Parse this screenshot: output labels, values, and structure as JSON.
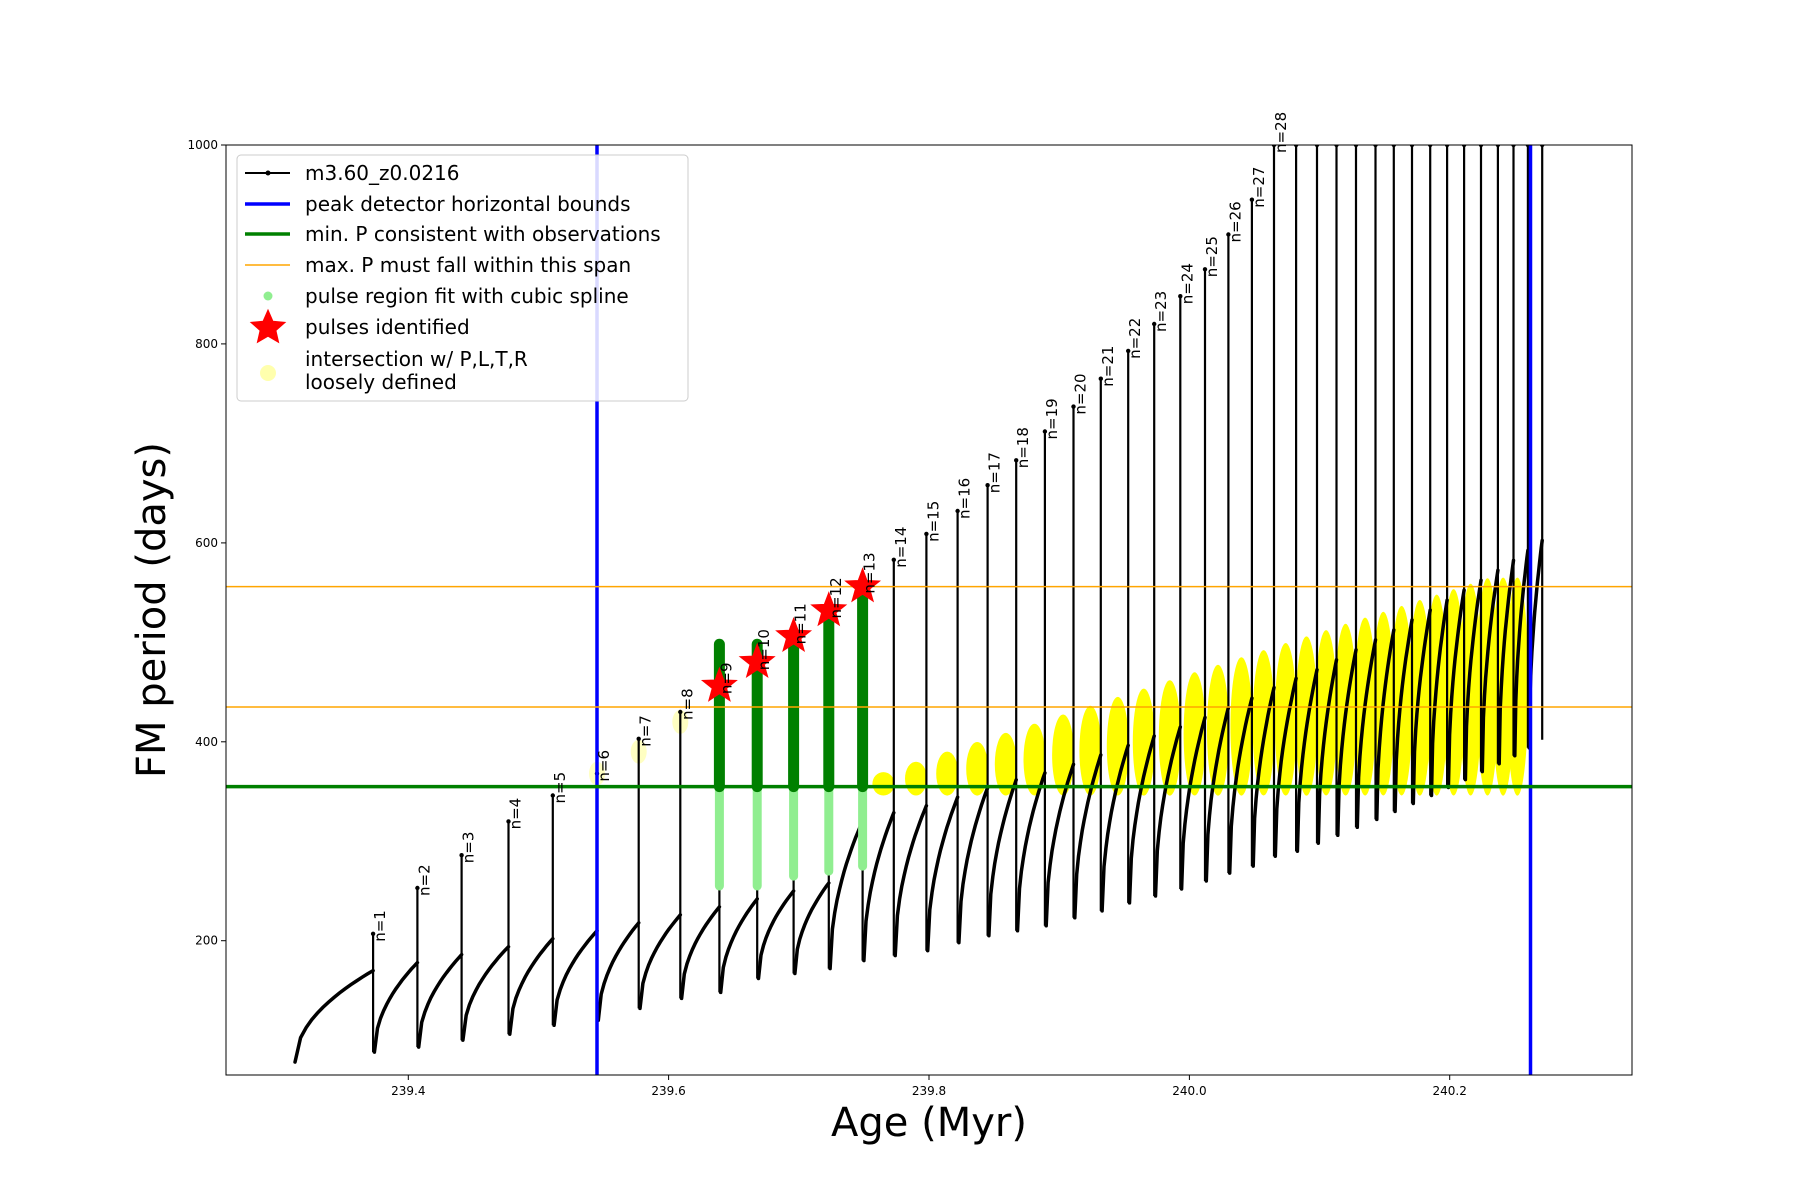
{
  "chart_data": {
    "type": "line",
    "xlabel": "Age (Myr)",
    "ylabel": "FM period (days)",
    "xlim": [
      239.26,
      240.34
    ],
    "ylim": [
      65,
      1000
    ],
    "xticks": [
      "239.4",
      "239.6",
      "239.8",
      "240.0",
      "240.2"
    ],
    "xtick_values": [
      239.4,
      239.6,
      239.8,
      240.0,
      240.2
    ],
    "yticks": [
      "200",
      "400",
      "600",
      "800",
      "1000"
    ],
    "ytick_values": [
      200,
      400,
      600,
      800,
      1000
    ],
    "grid": false,
    "legend_position": "top-left",
    "legend": [
      {
        "label": "m3.60_z0.0216",
        "style": "line-dot",
        "color": "#000000"
      },
      {
        "label": "peak detector horizontal bounds",
        "style": "line",
        "color": "#0000ff"
      },
      {
        "label": "min. P consistent with observations",
        "style": "line",
        "color": "#008000"
      },
      {
        "label": "max. P must fall within this span",
        "style": "thin-line",
        "color": "#ffa500"
      },
      {
        "label": "pulse region fit with cubic spline",
        "style": "dot",
        "color": "#90ee90"
      },
      {
        "label": "pulses identified",
        "style": "star",
        "color": "#ff0000"
      },
      {
        "label": "intersection w/ P,L,T,R",
        "label2": "loosely defined",
        "style": "circle",
        "color": "#ffff99"
      }
    ],
    "vertical_bounds": [
      239.545,
      240.262
    ],
    "min_period": 355,
    "max_period_span": [
      435,
      556
    ],
    "pulses": [
      {
        "n": "n=1",
        "age": 239.373,
        "min": 88,
        "peak": 207
      },
      {
        "n": "n=2",
        "age": 239.407,
        "min": 93,
        "peak": 253
      },
      {
        "n": "n=3",
        "age": 239.441,
        "min": 100,
        "peak": 286
      },
      {
        "n": "n=4",
        "age": 239.477,
        "min": 106,
        "peak": 320
      },
      {
        "n": "n=5",
        "age": 239.511,
        "min": 115,
        "peak": 346
      },
      {
        "n": "n=6",
        "age": 239.545,
        "min": 120,
        "peak": 368
      },
      {
        "n": "n=7",
        "age": 239.577,
        "min": 132,
        "peak": 403
      },
      {
        "n": "n=8",
        "age": 239.609,
        "min": 142,
        "peak": 430
      },
      {
        "n": "n=9",
        "age": 239.639,
        "min": 148,
        "peak": 456
      },
      {
        "n": "n=10",
        "age": 239.668,
        "min": 162,
        "peak": 480
      },
      {
        "n": "n=11",
        "age": 239.696,
        "min": 167,
        "peak": 506
      },
      {
        "n": "n=12",
        "age": 239.723,
        "min": 172,
        "peak": 532
      },
      {
        "n": "n=13",
        "age": 239.749,
        "min": 180,
        "peak": 557
      },
      {
        "n": "n=14",
        "age": 239.773,
        "min": 185,
        "peak": 583
      },
      {
        "n": "n=15",
        "age": 239.798,
        "min": 190,
        "peak": 609
      },
      {
        "n": "n=16",
        "age": 239.822,
        "min": 198,
        "peak": 632
      },
      {
        "n": "n=17",
        "age": 239.845,
        "min": 205,
        "peak": 658
      },
      {
        "n": "n=18",
        "age": 239.867,
        "min": 210,
        "peak": 683
      },
      {
        "n": "n=19",
        "age": 239.889,
        "min": 215,
        "peak": 712
      },
      {
        "n": "n=20",
        "age": 239.911,
        "min": 223,
        "peak": 737
      },
      {
        "n": "n=21",
        "age": 239.932,
        "min": 230,
        "peak": 765
      },
      {
        "n": "n=22",
        "age": 239.953,
        "min": 238,
        "peak": 793
      },
      {
        "n": "n=23",
        "age": 239.973,
        "min": 245,
        "peak": 820
      },
      {
        "n": "n=24",
        "age": 239.993,
        "min": 252,
        "peak": 848
      },
      {
        "n": "n=25",
        "age": 240.012,
        "min": 260,
        "peak": 875
      },
      {
        "n": "n=26",
        "age": 240.03,
        "min": 268,
        "peak": 910
      },
      {
        "n": "n=27",
        "age": 240.048,
        "min": 275,
        "peak": 945
      },
      {
        "n": "n=28",
        "age": 240.065,
        "min": 285,
        "peak": 1000
      }
    ],
    "extra_pulse_ages": [
      240.082,
      240.098,
      240.113,
      240.128,
      240.143,
      240.157,
      240.171,
      240.185,
      240.198,
      240.211,
      240.224,
      240.237,
      240.249,
      240.26,
      240.271
    ],
    "identified_pulses": [
      {
        "age": 239.639,
        "period": 456
      },
      {
        "age": 239.668,
        "period": 480
      },
      {
        "age": 239.696,
        "period": 506
      },
      {
        "age": 239.723,
        "period": 532
      },
      {
        "age": 239.749,
        "period": 556
      }
    ],
    "identified_pulse_ranges": [
      {
        "age": 239.639,
        "low": 255,
        "high": 498
      },
      {
        "age": 239.668,
        "low": 255,
        "high": 498
      },
      {
        "age": 239.696,
        "low": 265,
        "high": 506
      },
      {
        "age": 239.723,
        "low": 270,
        "high": 532
      },
      {
        "age": 239.749,
        "low": 275,
        "high": 556
      }
    ]
  }
}
